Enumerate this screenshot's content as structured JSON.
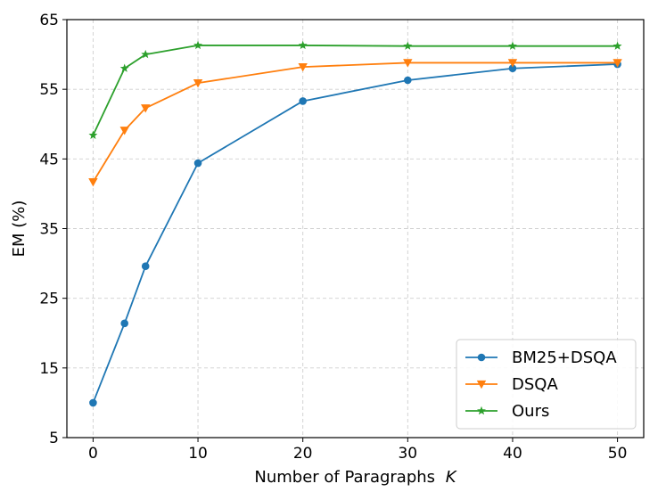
{
  "chart_data": {
    "type": "line",
    "xlabel": "Number of Paragraphs",
    "xlabel_var": "K",
    "ylabel": "EM (%)",
    "xlim": [
      -2.5,
      52.5
    ],
    "ylim": [
      5,
      65
    ],
    "xticks": [
      0,
      10,
      20,
      30,
      40,
      50
    ],
    "yticks": [
      5,
      15,
      25,
      35,
      45,
      55,
      65
    ],
    "grid": true,
    "legend_position": "bottom-right",
    "series": [
      {
        "name": "BM25+DSQA",
        "color": "#1f77b4",
        "marker": "circle",
        "x": [
          0,
          3,
          5,
          10,
          20,
          30,
          40,
          50
        ],
        "y": [
          10.0,
          21.4,
          29.6,
          44.4,
          53.3,
          56.3,
          58.0,
          58.6
        ]
      },
      {
        "name": "DSQA",
        "color": "#ff7f0e",
        "marker": "triangle-down",
        "x": [
          0,
          3,
          5,
          10,
          20,
          30,
          40,
          50
        ],
        "y": [
          41.7,
          49.1,
          52.3,
          55.9,
          58.2,
          58.8,
          58.8,
          58.8
        ]
      },
      {
        "name": "Ours",
        "color": "#2ca02c",
        "marker": "star",
        "x": [
          0,
          3,
          5,
          10,
          20,
          30,
          40,
          50
        ],
        "y": [
          48.4,
          58.0,
          60.0,
          61.3,
          61.3,
          61.2,
          61.2,
          61.2
        ]
      }
    ]
  }
}
